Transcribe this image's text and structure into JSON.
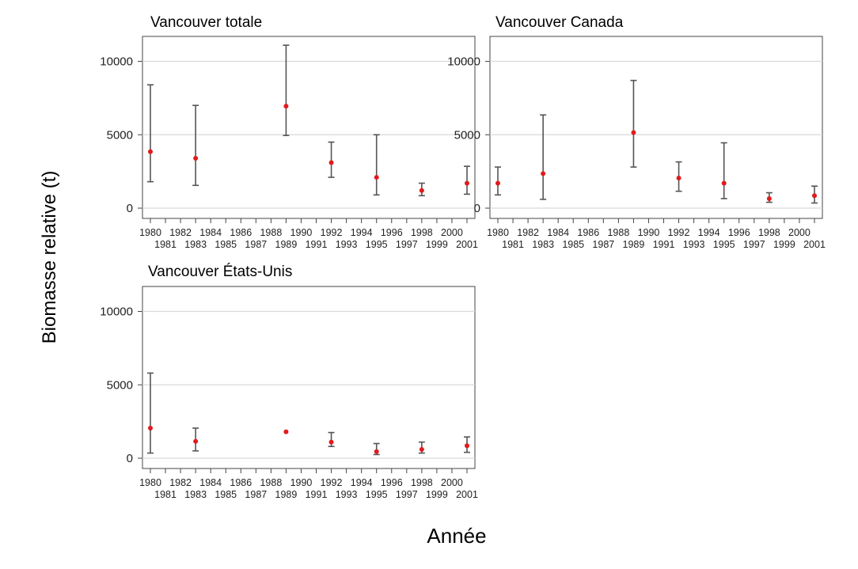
{
  "chart_data": {
    "type": "scatter",
    "ylabel": "Biomasse relative (t)",
    "xlabel": "Année",
    "x_ticks": [
      1980,
      1981,
      1982,
      1983,
      1984,
      1985,
      1986,
      1987,
      1988,
      1989,
      1990,
      1991,
      1992,
      1993,
      1994,
      1995,
      1996,
      1997,
      1998,
      1999,
      2000,
      2001
    ],
    "y_ticks": [
      0,
      5000,
      10000
    ],
    "ylim": [
      -700,
      11700
    ],
    "xlim": [
      1980,
      2001
    ],
    "grid": true,
    "point_color": "#e31a1c",
    "errorbar_color": "#555555",
    "panels": [
      {
        "title": "Vancouver totale",
        "points": [
          {
            "x": 1980,
            "y": 3850,
            "low": 1800,
            "high": 8400
          },
          {
            "x": 1983,
            "y": 3400,
            "low": 1550,
            "high": 7000
          },
          {
            "x": 1989,
            "y": 6950,
            "low": 4950,
            "high": 11100
          },
          {
            "x": 1992,
            "y": 3100,
            "low": 2100,
            "high": 4500
          },
          {
            "x": 1995,
            "y": 2100,
            "low": 900,
            "high": 5000
          },
          {
            "x": 1998,
            "y": 1200,
            "low": 850,
            "high": 1700
          },
          {
            "x": 2001,
            "y": 1700,
            "low": 950,
            "high": 2850
          }
        ]
      },
      {
        "title": "Vancouver Canada",
        "points": [
          {
            "x": 1980,
            "y": 1700,
            "low": 900,
            "high": 2800
          },
          {
            "x": 1983,
            "y": 2350,
            "low": 600,
            "high": 6350
          },
          {
            "x": 1989,
            "y": 5150,
            "low": 2800,
            "high": 8700
          },
          {
            "x": 1992,
            "y": 2050,
            "low": 1150,
            "high": 3150
          },
          {
            "x": 1995,
            "y": 1700,
            "low": 650,
            "high": 4450
          },
          {
            "x": 1998,
            "y": 650,
            "low": 400,
            "high": 1050
          },
          {
            "x": 2001,
            "y": 850,
            "low": 350,
            "high": 1500
          }
        ]
      },
      {
        "title": "Vancouver États-Unis",
        "points": [
          {
            "x": 1980,
            "y": 2050,
            "low": 350,
            "high": 5800
          },
          {
            "x": 1983,
            "y": 1150,
            "low": 500,
            "high": 2050
          },
          {
            "x": 1989,
            "y": 1800,
            "low": 1800,
            "high": 1800
          },
          {
            "x": 1992,
            "y": 1100,
            "low": 800,
            "high": 1750
          },
          {
            "x": 1995,
            "y": 450,
            "low": 250,
            "high": 1000
          },
          {
            "x": 1998,
            "y": 600,
            "low": 350,
            "high": 1100
          },
          {
            "x": 2001,
            "y": 850,
            "low": 400,
            "high": 1450
          }
        ]
      }
    ]
  }
}
